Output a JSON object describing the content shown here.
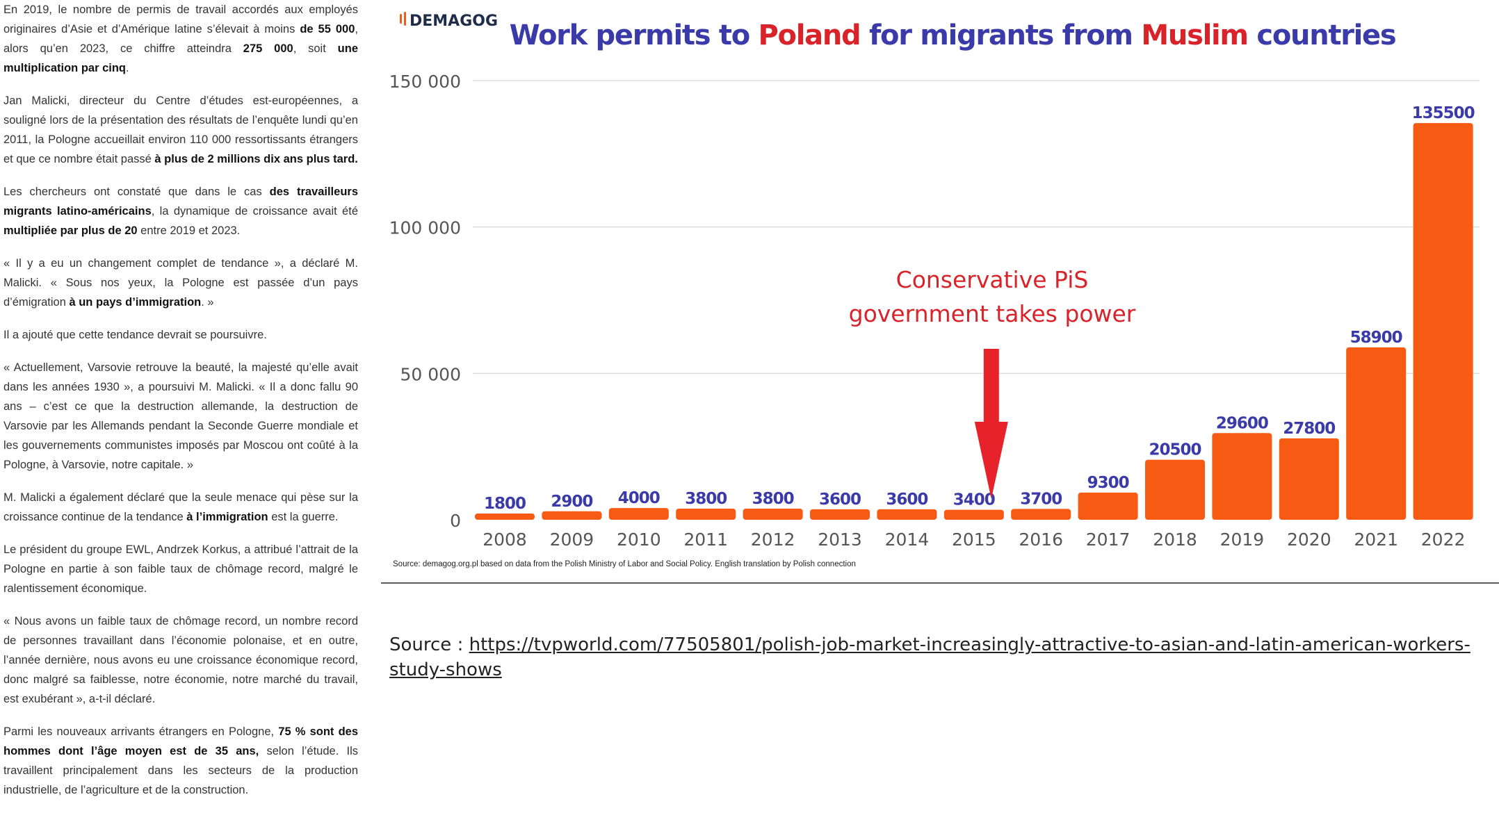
{
  "article": {
    "p1": {
      "t1": "En 2019, le nombre de permis de travail accordés aux employés originaires d’Asie et d’Amérique latine s’élevait à moins ",
      "b1": "de 55 000",
      "t2": ", alors qu’en 2023, ce chiffre atteindra ",
      "b2": "275 000",
      "t3": ", soit ",
      "b3": "une multiplication par cinq",
      "t4": "."
    },
    "p2": {
      "t1": "Jan Malicki, directeur du Centre d’études est-européennes, a souligné lors de la présentation des résultats de l’enquête lundi qu’en 2011, la Pologne accueillait environ 110 000 ressortissants étrangers et que ce nombre était passé ",
      "b1": "à plus de 2 millions dix ans plus tard."
    },
    "p3": {
      "t1": "Les chercheurs ont constaté que dans le cas ",
      "b1": "des travailleurs migrants latino-américains",
      "t2": ", la dynamique de croissance avait été ",
      "b2": "multipliée par plus de 20",
      "t3": " entre 2019 et 2023."
    },
    "p4": {
      "t1": "« Il y a eu un changement complet de tendance », a déclaré M. Malicki. « Sous nos yeux, la Pologne est passée d’un pays d’émigration ",
      "b1": "à un pays d’immigration",
      "t2": ". »"
    },
    "p5": {
      "t1": "Il a ajouté que cette tendance devrait se poursuivre."
    },
    "p6": {
      "t1": "« Actuellement, Varsovie retrouve la beauté, la majesté qu’elle avait dans les années 1930 », a poursuivi M. Malicki. « Il a donc fallu 90 ans – c’est ce que la destruction allemande, la destruction de Varsovie par les Allemands pendant la Seconde Guerre mondiale et les gouvernements communistes imposés par Moscou ont coûté à la Pologne, à Varsovie, notre capitale. »"
    },
    "p7": {
      "t1": "M. Malicki a également déclaré que la seule menace qui pèse sur la croissance continue de la tendance ",
      "b1": "à l’immigration",
      "t2": " est la guerre."
    },
    "p8": {
      "t1": "Le président du groupe EWL, Andrzek Korkus, a attribué l’attrait de la Pologne en partie à son faible taux de chômage record, malgré le ralentissement économique."
    },
    "p9": {
      "t1": "« Nous avons un faible taux de chômage record, un nombre record de personnes travaillant dans l’économie polonaise, et en outre, l’année dernière, nous avons eu une croissance économique record, donc malgré sa faiblesse, notre économie, notre marché du travail, est exubérant », a-t-il déclaré."
    },
    "p10": {
      "t1": "Parmi les nouveaux arrivants étrangers en Pologne, ",
      "b1": "75 % sont des hommes dont l’âge moyen est de 35 ans,",
      "t2": " selon l’étude. Ils travaillent principalement dans les secteurs de la production industrielle, de l’agriculture et de la construction."
    }
  },
  "chart_data": {
    "type": "bar",
    "logo": "DEMAGOG",
    "title_parts": [
      {
        "text": "Work permits to ",
        "color": "#3a3aa8"
      },
      {
        "text": "Poland",
        "color": "#d8232a"
      },
      {
        "text": " for migrants from ",
        "color": "#3a3aa8"
      },
      {
        "text": "Muslim",
        "color": "#d8232a"
      },
      {
        "text": " countries",
        "color": "#3a3aa8"
      }
    ],
    "categories": [
      "2008",
      "2009",
      "2010",
      "2011",
      "2012",
      "2013",
      "2014",
      "2015",
      "2016",
      "2017",
      "2018",
      "2019",
      "2020",
      "2021",
      "2022"
    ],
    "values": [
      1800,
      2900,
      4000,
      3800,
      3800,
      3600,
      3600,
      3400,
      3700,
      9300,
      20500,
      29600,
      27800,
      58900,
      135500
    ],
    "yticks": [
      0,
      50000,
      100000,
      150000
    ],
    "ytick_labels": [
      "0",
      "50 000",
      "100 000",
      "150 000"
    ],
    "ylim": [
      0,
      150000
    ],
    "grid": true,
    "bar_color": "#f75a12",
    "label_color": "#3a3aa8",
    "annotation": {
      "line1": "Conservative PiS",
      "line2": "government takes power",
      "year": "2015",
      "color": "#d8232a"
    },
    "source_note": "Source: demagog.org.pl based on data from the Polish Ministry of Labor and Social Policy. English translation by Polish connection"
  },
  "source": {
    "label": "Source : ",
    "url": "https://tvpworld.com/77505801/polish-job-market-increasingly-attractive-to-asian-and-latin-american-workers-study-shows"
  }
}
